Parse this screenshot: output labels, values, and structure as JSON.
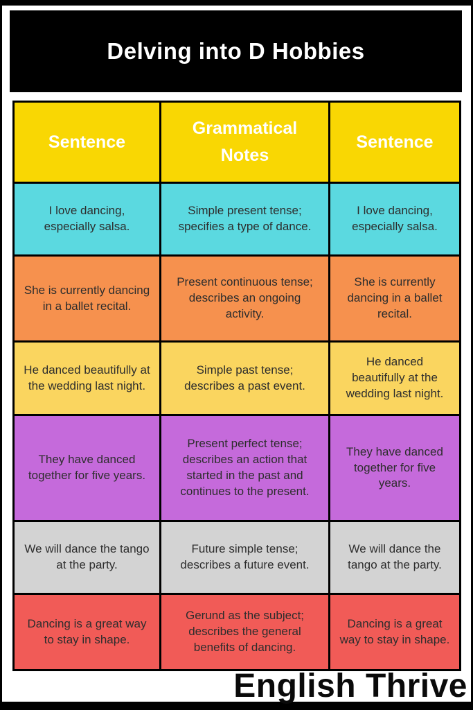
{
  "page": {
    "title": "Delving into D Hobbies",
    "brand": "English Thrive"
  },
  "colors": {
    "banner_bg": "#000000",
    "title_text": "#ffffff",
    "header_bg": "#f9d703",
    "cell_text": "#2d2d2d"
  },
  "table": {
    "columns": [
      "Sentence",
      "Grammatical Notes",
      "Sentence"
    ],
    "rows": [
      {
        "bg": "#5bd9e0",
        "cells": [
          "I love dancing, especially salsa.",
          "Simple present tense; specifies a type of dance.",
          "I love dancing, especially salsa."
        ]
      },
      {
        "bg": "#f6914e",
        "cells": [
          "She is currently dancing in a ballet recital.",
          "Present continuous tense; describes an ongoing activity.",
          "She is currently dancing in a ballet recital."
        ]
      },
      {
        "bg": "#fad55f",
        "cells": [
          "He danced beautifully at the wedding last night.",
          "Simple past tense; describes a past event.",
          "He danced beautifully at the wedding last night."
        ]
      },
      {
        "bg": "#c56adb",
        "cells": [
          "They have danced together for five years.",
          "Present perfect tense; describes an action that started in the past and continues to the present.",
          "They have danced together for five years."
        ]
      },
      {
        "bg": "#d3d3d3",
        "cells": [
          "We will dance the tango at the party.",
          "Future simple tense; describes a future event.",
          "We will dance the tango at the party."
        ]
      },
      {
        "bg": "#f15b57",
        "cells": [
          "Dancing is a great way to stay in shape.",
          "Gerund as the subject; describes the general benefits of dancing.",
          "Dancing is a great way to stay in shape."
        ]
      }
    ]
  }
}
